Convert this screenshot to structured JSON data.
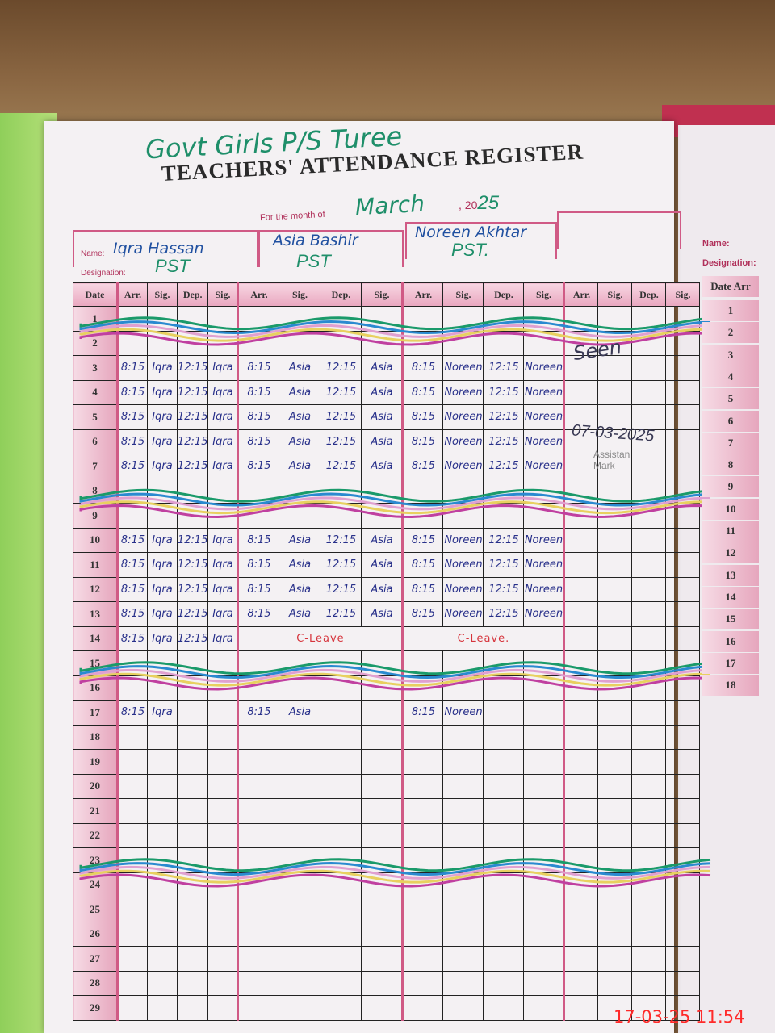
{
  "school_name": "Govt Girls P/S Turee",
  "title": "TEACHERS' ATTENDANCE REGISTER",
  "month_label": "For the month of",
  "month": "March",
  "year_prefix": ", 20",
  "year_suffix": "25",
  "name_label": "Name:",
  "designation_label": "Designation:",
  "teachers": [
    {
      "name": "Iqra Hassan",
      "designation": "PST"
    },
    {
      "name": "Asia Bashir",
      "designation": "PST"
    },
    {
      "name": "Noreen Akhtar",
      "designation": "PST."
    },
    {
      "name": "",
      "designation": ""
    }
  ],
  "columns": {
    "date": "Date",
    "arr": "Arr.",
    "sig": "Sig.",
    "dep": "Dep."
  },
  "holiday_rows": [
    1,
    2,
    8,
    9,
    15,
    16,
    23,
    24
  ],
  "rows": [
    {
      "day": "1"
    },
    {
      "day": "2"
    },
    {
      "day": "3",
      "t": [
        [
          "8:15",
          "Iqra",
          "12:15",
          "Iqra"
        ],
        [
          "8:15",
          "Asia",
          "12:15",
          "Asia"
        ],
        [
          "8:15",
          "Noreen",
          "12:15",
          "Noreen"
        ]
      ]
    },
    {
      "day": "4",
      "t": [
        [
          "8:15",
          "Iqra",
          "12:15",
          "Iqra"
        ],
        [
          "8:15",
          "Asia",
          "12:15",
          "Asia"
        ],
        [
          "8:15",
          "Noreen",
          "12:15",
          "Noreen"
        ]
      ]
    },
    {
      "day": "5",
      "t": [
        [
          "8:15",
          "Iqra",
          "12:15",
          "Iqra"
        ],
        [
          "8:15",
          "Asia",
          "12:15",
          "Asia"
        ],
        [
          "8:15",
          "Noreen",
          "12:15",
          "Noreen"
        ]
      ]
    },
    {
      "day": "6",
      "t": [
        [
          "8:15",
          "Iqra",
          "12:15",
          "Iqra"
        ],
        [
          "8:15",
          "Asia",
          "12:15",
          "Asia"
        ],
        [
          "8:15",
          "Noreen",
          "12:15",
          "Noreen"
        ]
      ]
    },
    {
      "day": "7",
      "t": [
        [
          "8:15",
          "Iqra",
          "12:15",
          "Iqra"
        ],
        [
          "8:15",
          "Asia",
          "12:15",
          "Asia"
        ],
        [
          "8:15",
          "Noreen",
          "12:15",
          "Noreen"
        ]
      ]
    },
    {
      "day": "8"
    },
    {
      "day": "9"
    },
    {
      "day": "10",
      "t": [
        [
          "8:15",
          "Iqra",
          "12:15",
          "Iqra"
        ],
        [
          "8:15",
          "Asia",
          "12:15",
          "Asia"
        ],
        [
          "8:15",
          "Noreen",
          "12:15",
          "Noreen"
        ]
      ]
    },
    {
      "day": "11",
      "t": [
        [
          "8:15",
          "Iqra",
          "12:15",
          "Iqra"
        ],
        [
          "8:15",
          "Asia",
          "12:15",
          "Asia"
        ],
        [
          "8:15",
          "Noreen",
          "12:15",
          "Noreen"
        ]
      ]
    },
    {
      "day": "12",
      "t": [
        [
          "8:15",
          "Iqra",
          "12:15",
          "Iqra"
        ],
        [
          "8:15",
          "Asia",
          "12:15",
          "Asia"
        ],
        [
          "8:15",
          "Noreen",
          "12:15",
          "Noreen"
        ]
      ]
    },
    {
      "day": "13",
      "t": [
        [
          "8:15",
          "Iqra",
          "12:15",
          "Iqra"
        ],
        [
          "8:15",
          "Asia",
          "12:15",
          "Asia"
        ],
        [
          "8:15",
          "Noreen",
          "12:15",
          "Noreen"
        ]
      ]
    },
    {
      "day": "14",
      "t": [
        [
          "8:15",
          "Iqra",
          "12:15",
          "Iqra"
        ]
      ],
      "leave": [
        "C-Leave",
        "C-Leave."
      ]
    },
    {
      "day": "15"
    },
    {
      "day": "16"
    },
    {
      "day": "17",
      "t": [
        [
          "8:15",
          "Iqra",
          "",
          ""
        ],
        [
          "8:15",
          "Asia",
          "",
          ""
        ],
        [
          "8:15",
          "Noreen",
          "",
          ""
        ]
      ]
    },
    {
      "day": "18"
    },
    {
      "day": "19"
    },
    {
      "day": "20"
    },
    {
      "day": "21"
    },
    {
      "day": "22"
    },
    {
      "day": "23"
    },
    {
      "day": "24"
    },
    {
      "day": "25"
    },
    {
      "day": "26"
    },
    {
      "day": "27"
    },
    {
      "day": "28"
    },
    {
      "day": "29"
    }
  ],
  "signature": {
    "text": "Seen",
    "date": "07-03-2025"
  },
  "stamp_text": [
    "Assistan",
    "Mark"
  ],
  "right_page": {
    "name_label": "Name:",
    "designation_label": "Designation:",
    "date_header": "Date",
    "arr_header": "Arr",
    "days": [
      "1",
      "2",
      "3",
      "4",
      "5",
      "6",
      "7",
      "8",
      "9",
      "10",
      "11",
      "12",
      "13",
      "14",
      "15",
      "16",
      "17",
      "18"
    ]
  },
  "timestamp": "17-03-25  11:54",
  "wave_colors": [
    "#1a9a6a",
    "#2a8ad0",
    "#e0a0d0",
    "#e8d060",
    "#c040a0"
  ]
}
